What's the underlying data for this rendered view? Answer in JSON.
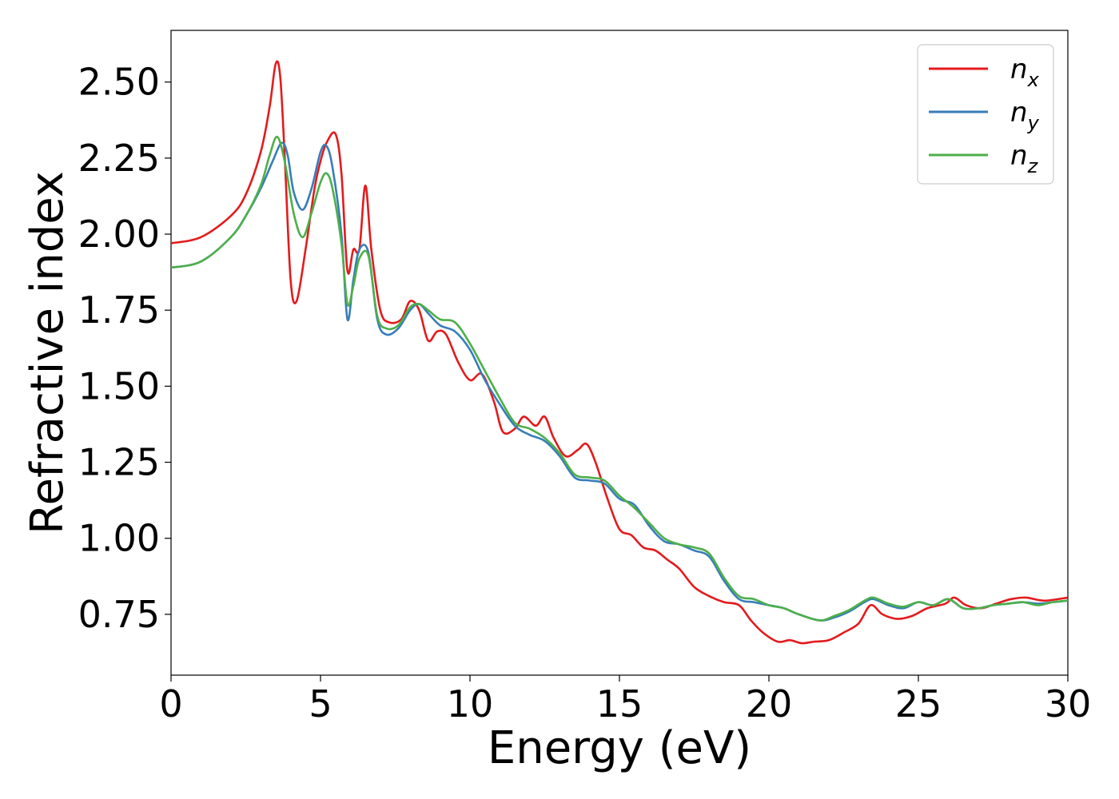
{
  "chart_data": {
    "type": "line",
    "xlabel": "Energy (eV)",
    "ylabel": "Refractive index",
    "xlim": [
      0,
      30
    ],
    "ylim": [
      0.55,
      2.67
    ],
    "xticks": [
      "0",
      "5",
      "10",
      "15",
      "20",
      "25",
      "30"
    ],
    "yticks": [
      "0.75",
      "1.00",
      "1.25",
      "1.50",
      "1.75",
      "2.00",
      "2.25",
      "2.50"
    ],
    "grid": false,
    "legend_position": "upper right",
    "series": [
      {
        "name": "n",
        "subscript": "x",
        "color": "#e41a1c",
        "x": [
          0,
          1,
          2,
          2.5,
          3,
          3.3,
          3.5,
          3.65,
          3.8,
          4.0,
          4.2,
          4.5,
          4.8,
          5.0,
          5.2,
          5.5,
          5.7,
          5.9,
          6.1,
          6.3,
          6.5,
          6.7,
          7.0,
          7.3,
          7.7,
          8.0,
          8.3,
          8.6,
          8.9,
          9.2,
          9.6,
          10.0,
          10.4,
          10.8,
          11.1,
          11.5,
          11.8,
          12.2,
          12.5,
          12.8,
          13.2,
          13.6,
          13.9,
          14.2,
          14.6,
          15.0,
          15.4,
          15.8,
          16.2,
          16.6,
          17.0,
          17.5,
          18.0,
          18.5,
          19.0,
          19.4,
          19.8,
          20.3,
          20.7,
          21.1,
          21.5,
          22.0,
          22.5,
          23.0,
          23.4,
          23.8,
          24.3,
          24.8,
          25.3,
          25.9,
          26.2,
          26.6,
          27.1,
          27.6,
          28.1,
          28.6,
          29.2,
          30
        ],
        "y": [
          1.97,
          1.99,
          2.06,
          2.13,
          2.27,
          2.42,
          2.56,
          2.52,
          2.26,
          1.85,
          1.78,
          1.95,
          2.15,
          2.24,
          2.3,
          2.33,
          2.2,
          1.88,
          1.95,
          1.95,
          2.16,
          1.95,
          1.75,
          1.71,
          1.72,
          1.78,
          1.75,
          1.65,
          1.68,
          1.67,
          1.58,
          1.52,
          1.54,
          1.45,
          1.35,
          1.36,
          1.4,
          1.37,
          1.4,
          1.33,
          1.27,
          1.29,
          1.31,
          1.25,
          1.13,
          1.03,
          1.01,
          0.97,
          0.96,
          0.93,
          0.9,
          0.84,
          0.81,
          0.79,
          0.78,
          0.73,
          0.69,
          0.66,
          0.665,
          0.655,
          0.66,
          0.665,
          0.69,
          0.72,
          0.78,
          0.75,
          0.735,
          0.745,
          0.77,
          0.785,
          0.805,
          0.78,
          0.77,
          0.785,
          0.8,
          0.805,
          0.795,
          0.805
        ]
      },
      {
        "name": "n",
        "subscript": "y",
        "color": "#377eb8",
        "x": [
          0,
          1,
          2,
          2.5,
          3,
          3.4,
          3.7,
          3.9,
          4.1,
          4.4,
          4.7,
          5.0,
          5.2,
          5.4,
          5.7,
          5.9,
          6.1,
          6.3,
          6.6,
          6.9,
          7.2,
          7.6,
          8.0,
          8.3,
          8.6,
          9.0,
          9.5,
          10.0,
          10.5,
          11.0,
          11.5,
          12.0,
          12.5,
          13.0,
          13.5,
          14.0,
          14.5,
          15.0,
          15.5,
          16.0,
          16.5,
          17.0,
          17.5,
          18.0,
          18.5,
          19.0,
          19.5,
          20.0,
          20.5,
          21.0,
          21.7,
          22.2,
          22.7,
          23.2,
          23.5,
          24.0,
          24.5,
          25.0,
          25.5,
          26.0,
          26.5,
          27.0,
          27.5,
          28.0,
          28.5,
          29.0,
          29.5,
          30
        ],
        "y": [
          1.89,
          1.91,
          1.99,
          2.06,
          2.15,
          2.24,
          2.3,
          2.26,
          2.14,
          2.08,
          2.15,
          2.27,
          2.29,
          2.22,
          2.0,
          1.72,
          1.85,
          1.95,
          1.94,
          1.72,
          1.67,
          1.69,
          1.75,
          1.77,
          1.74,
          1.7,
          1.68,
          1.62,
          1.52,
          1.44,
          1.37,
          1.34,
          1.32,
          1.27,
          1.2,
          1.19,
          1.18,
          1.13,
          1.11,
          1.04,
          0.99,
          0.98,
          0.96,
          0.94,
          0.86,
          0.8,
          0.79,
          0.78,
          0.77,
          0.75,
          0.73,
          0.74,
          0.76,
          0.79,
          0.8,
          0.78,
          0.77,
          0.79,
          0.78,
          0.8,
          0.77,
          0.77,
          0.78,
          0.785,
          0.79,
          0.785,
          0.79,
          0.795
        ]
      },
      {
        "name": "n",
        "subscript": "z",
        "color": "#4daf4a",
        "x": [
          0,
          1,
          2,
          2.5,
          3,
          3.3,
          3.55,
          3.8,
          4.1,
          4.4,
          4.7,
          5.0,
          5.2,
          5.4,
          5.7,
          5.9,
          6.1,
          6.3,
          6.6,
          6.9,
          7.2,
          7.6,
          8.0,
          8.3,
          8.6,
          9.0,
          9.5,
          10.0,
          10.5,
          11.0,
          11.5,
          12.0,
          12.5,
          13.0,
          13.5,
          14.0,
          14.5,
          15.0,
          15.5,
          16.0,
          16.5,
          17.0,
          17.5,
          18.0,
          18.5,
          19.0,
          19.5,
          20.0,
          20.5,
          21.0,
          21.7,
          22.2,
          22.7,
          23.2,
          23.5,
          24.0,
          24.5,
          25.0,
          25.5,
          26.0,
          26.5,
          27.0,
          27.5,
          28.0,
          28.5,
          29.0,
          29.5,
          30
        ],
        "y": [
          1.89,
          1.91,
          1.99,
          2.06,
          2.16,
          2.26,
          2.32,
          2.24,
          2.07,
          1.99,
          2.07,
          2.17,
          2.2,
          2.15,
          1.97,
          1.77,
          1.83,
          1.92,
          1.93,
          1.73,
          1.69,
          1.7,
          1.76,
          1.77,
          1.75,
          1.72,
          1.71,
          1.64,
          1.55,
          1.46,
          1.38,
          1.36,
          1.33,
          1.28,
          1.21,
          1.2,
          1.19,
          1.14,
          1.1,
          1.05,
          1.0,
          0.98,
          0.97,
          0.95,
          0.87,
          0.81,
          0.8,
          0.78,
          0.77,
          0.75,
          0.73,
          0.745,
          0.765,
          0.795,
          0.805,
          0.785,
          0.775,
          0.79,
          0.78,
          0.8,
          0.77,
          0.77,
          0.78,
          0.785,
          0.79,
          0.78,
          0.79,
          0.795
        ]
      }
    ]
  }
}
